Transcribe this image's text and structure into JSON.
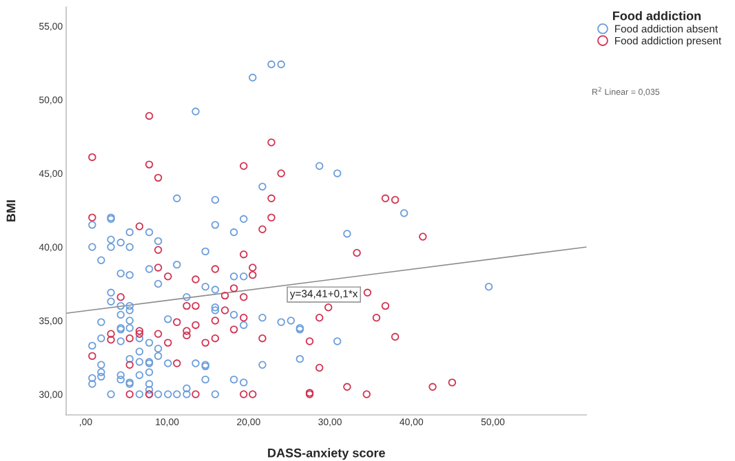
{
  "chart_data": {
    "type": "scatter",
    "xlabel": "DASS-anxiety score",
    "ylabel": "BMI",
    "legend_title": "Food addiction",
    "legend": "right",
    "marker": "circle",
    "grid": false,
    "xlim": [
      -2.4,
      61.5
    ],
    "ylim": [
      28.6,
      56.3
    ],
    "xticks": [
      {
        "value": 0,
        "label": ",00"
      },
      {
        "value": 10,
        "label": "10,00"
      },
      {
        "value": 20,
        "label": "20,00"
      },
      {
        "value": 30,
        "label": "30,00"
      },
      {
        "value": 40,
        "label": "40,00"
      },
      {
        "value": 50,
        "label": "50,00"
      }
    ],
    "yticks": [
      {
        "value": 30,
        "label": "30,00"
      },
      {
        "value": 35,
        "label": "35,00"
      },
      {
        "value": 40,
        "label": "40,00"
      },
      {
        "value": 45,
        "label": "45,00"
      },
      {
        "value": 50,
        "label": "50,00"
      },
      {
        "value": 55,
        "label": "55,00"
      }
    ],
    "series": [
      {
        "name": "Food addiction absent",
        "color": "#6b9ddb",
        "x": [
          24.0,
          22.8,
          20.5,
          13.5,
          11.2,
          3.1,
          3.1,
          0.8,
          5.4,
          7.8,
          3.1,
          4.3,
          8.9,
          0.8,
          3.1,
          5.4,
          28.7,
          30.9,
          21.7,
          15.9,
          19.4,
          15.9,
          18.2,
          14.7,
          1.9,
          4.3,
          5.4,
          7.8,
          11.2,
          8.9,
          14.7,
          3.1,
          3.1,
          4.3,
          5.4,
          5.4,
          4.3,
          1.9,
          5.4,
          4.3,
          4.3,
          5.4,
          10.1,
          12.4,
          1.9,
          4.3,
          6.6,
          7.8,
          0.8,
          6.6,
          8.9,
          8.9,
          5.4,
          6.6,
          7.8,
          7.8,
          10.1,
          13.5,
          1.9,
          1.9,
          1.9,
          0.8,
          0.8,
          4.3,
          4.3,
          6.6,
          7.8,
          5.4,
          5.4,
          7.8,
          7.8,
          12.4,
          3.1,
          6.6,
          7.8,
          8.9,
          10.1,
          11.2,
          12.4,
          18.2,
          19.4,
          15.9,
          15.9,
          15.9,
          18.2,
          21.7,
          19.4,
          24.0,
          25.2,
          26.3,
          26.3,
          30.9,
          26.3,
          14.7,
          14.7,
          21.7,
          14.7,
          18.2,
          19.4,
          15.9,
          39.1,
          32.1,
          49.5
        ],
        "values": [
          52.4,
          52.4,
          51.5,
          49.2,
          43.3,
          42.0,
          41.9,
          41.5,
          41.0,
          41.0,
          40.5,
          40.3,
          40.4,
          40.0,
          40.0,
          40.0,
          45.5,
          45.0,
          44.1,
          43.2,
          41.9,
          41.5,
          41.0,
          39.7,
          39.1,
          38.2,
          38.1,
          38.5,
          38.8,
          37.5,
          37.3,
          36.9,
          36.3,
          36.0,
          36.0,
          35.7,
          35.4,
          34.9,
          35.0,
          34.5,
          34.4,
          34.5,
          35.1,
          36.6,
          33.8,
          33.6,
          33.8,
          33.5,
          33.3,
          32.9,
          33.1,
          32.6,
          32.4,
          32.2,
          32.2,
          32.1,
          32.1,
          32.1,
          32.0,
          31.5,
          31.2,
          31.1,
          30.7,
          31.3,
          31.0,
          31.3,
          31.5,
          30.8,
          30.7,
          30.7,
          30.3,
          30.4,
          30.0,
          30.0,
          30.0,
          30.0,
          30.0,
          30.0,
          30.0,
          38.0,
          38.0,
          37.1,
          35.9,
          35.7,
          35.4,
          35.2,
          34.7,
          34.9,
          35.0,
          34.5,
          34.4,
          33.6,
          32.4,
          32.0,
          31.9,
          32.0,
          31.0,
          31.0,
          30.8,
          30.0,
          42.3,
          40.9,
          37.3
        ]
      },
      {
        "name": "Food addiction present",
        "color": "#d2314f",
        "x": [
          7.8,
          0.8,
          7.8,
          8.9,
          0.8,
          6.6,
          8.9,
          22.8,
          19.4,
          24.0,
          22.8,
          22.8,
          21.7,
          19.4,
          8.9,
          10.1,
          13.5,
          4.3,
          13.5,
          12.4,
          13.5,
          11.2,
          3.1,
          3.1,
          5.4,
          6.6,
          6.6,
          8.9,
          12.4,
          12.4,
          10.1,
          0.8,
          5.4,
          11.2,
          5.4,
          7.8,
          13.5,
          15.9,
          20.5,
          20.5,
          18.2,
          17.1,
          19.4,
          29.8,
          17.1,
          19.4,
          15.9,
          18.2,
          28.7,
          21.7,
          15.9,
          14.7,
          27.5,
          28.7,
          19.4,
          20.5,
          27.5,
          27.5,
          36.8,
          38.0,
          41.4,
          33.3,
          34.6,
          36.8,
          35.7,
          38.0,
          32.1,
          34.5,
          42.6,
          45.0
        ],
        "values": [
          48.9,
          46.1,
          45.6,
          44.7,
          42.0,
          41.4,
          39.8,
          47.1,
          45.5,
          45.0,
          43.3,
          42.0,
          41.2,
          39.5,
          38.6,
          38.0,
          37.8,
          36.6,
          36.0,
          36.0,
          34.7,
          34.9,
          34.1,
          33.7,
          33.8,
          34.3,
          34.1,
          34.1,
          34.3,
          34.0,
          33.5,
          32.6,
          32.0,
          32.1,
          30.0,
          30.0,
          30.0,
          38.5,
          38.6,
          38.1,
          37.2,
          36.7,
          36.6,
          35.9,
          35.7,
          35.2,
          35.0,
          34.4,
          35.2,
          33.8,
          33.8,
          33.5,
          33.6,
          31.8,
          30.0,
          30.0,
          30.1,
          30.0,
          43.3,
          43.2,
          40.7,
          39.6,
          36.9,
          36.0,
          35.2,
          33.9,
          30.5,
          30.0,
          30.5,
          30.8
        ]
      },
      {
        "type": "line",
        "marker": "none",
        "color": "#8c8c8c",
        "x": [
          -2.4,
          61.5
        ],
        "values": [
          35.5,
          40.0
        ]
      }
    ],
    "annotations": [
      "y=34,41+0,1*x",
      "R$^{2}$ Linear = 0,035"
    ]
  }
}
